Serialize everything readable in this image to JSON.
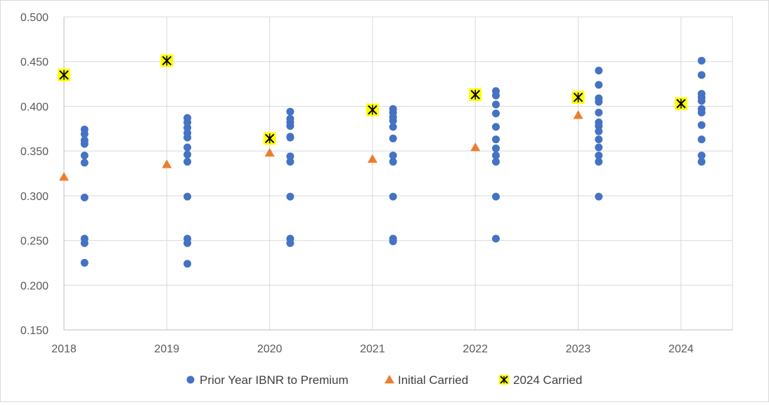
{
  "chart_data": {
    "type": "scatter",
    "title": "",
    "xlabel": "",
    "ylabel": "",
    "xlim": [
      2018,
      2024.5
    ],
    "ylim": [
      0.15,
      0.5
    ],
    "x_ticks": [
      "2018",
      "2019",
      "2020",
      "2021",
      "2022",
      "2023",
      "2024"
    ],
    "y_ticks": [
      "0.500",
      "0.450",
      "0.400",
      "0.350",
      "0.300",
      "0.250",
      "0.200",
      "0.150"
    ],
    "grid": true,
    "legend_position": "bottom",
    "series": [
      {
        "name": "Prior Year IBNR to Premium",
        "marker": "circle",
        "color": "#4472C4",
        "points": [
          [
            2018.2,
            0.374
          ],
          [
            2018.2,
            0.369
          ],
          [
            2018.2,
            0.362
          ],
          [
            2018.2,
            0.358
          ],
          [
            2018.2,
            0.345
          ],
          [
            2018.2,
            0.337
          ],
          [
            2018.2,
            0.298
          ],
          [
            2018.2,
            0.252
          ],
          [
            2018.2,
            0.247
          ],
          [
            2018.2,
            0.225
          ],
          [
            2019.2,
            0.387
          ],
          [
            2019.2,
            0.382
          ],
          [
            2019.2,
            0.376
          ],
          [
            2019.2,
            0.37
          ],
          [
            2019.2,
            0.365
          ],
          [
            2019.2,
            0.354
          ],
          [
            2019.2,
            0.346
          ],
          [
            2019.2,
            0.338
          ],
          [
            2019.2,
            0.299
          ],
          [
            2019.2,
            0.252
          ],
          [
            2019.2,
            0.247
          ],
          [
            2019.2,
            0.224
          ],
          [
            2020.2,
            0.394
          ],
          [
            2020.2,
            0.386
          ],
          [
            2020.2,
            0.382
          ],
          [
            2020.2,
            0.378
          ],
          [
            2020.2,
            0.366
          ],
          [
            2020.2,
            0.365
          ],
          [
            2020.2,
            0.344
          ],
          [
            2020.2,
            0.338
          ],
          [
            2020.2,
            0.299
          ],
          [
            2020.2,
            0.252
          ],
          [
            2020.2,
            0.247
          ],
          [
            2021.2,
            0.397
          ],
          [
            2021.2,
            0.393
          ],
          [
            2021.2,
            0.388
          ],
          [
            2021.2,
            0.384
          ],
          [
            2021.2,
            0.377
          ],
          [
            2021.2,
            0.364
          ],
          [
            2021.2,
            0.345
          ],
          [
            2021.2,
            0.338
          ],
          [
            2021.2,
            0.299
          ],
          [
            2021.2,
            0.252
          ],
          [
            2021.2,
            0.249
          ],
          [
            2022.2,
            0.417
          ],
          [
            2022.2,
            0.412
          ],
          [
            2022.2,
            0.402
          ],
          [
            2022.2,
            0.392
          ],
          [
            2022.2,
            0.377
          ],
          [
            2022.2,
            0.363
          ],
          [
            2022.2,
            0.353
          ],
          [
            2022.2,
            0.345
          ],
          [
            2022.2,
            0.338
          ],
          [
            2022.2,
            0.299
          ],
          [
            2022.2,
            0.252
          ],
          [
            2023.2,
            0.44
          ],
          [
            2023.2,
            0.424
          ],
          [
            2023.2,
            0.409
          ],
          [
            2023.2,
            0.405
          ],
          [
            2023.2,
            0.393
          ],
          [
            2023.2,
            0.382
          ],
          [
            2023.2,
            0.378
          ],
          [
            2023.2,
            0.372
          ],
          [
            2023.2,
            0.363
          ],
          [
            2023.2,
            0.354
          ],
          [
            2023.2,
            0.345
          ],
          [
            2023.2,
            0.338
          ],
          [
            2023.2,
            0.299
          ],
          [
            2024.2,
            0.451
          ],
          [
            2024.2,
            0.435
          ],
          [
            2024.2,
            0.414
          ],
          [
            2024.2,
            0.41
          ],
          [
            2024.2,
            0.406
          ],
          [
            2024.2,
            0.397
          ],
          [
            2024.2,
            0.393
          ],
          [
            2024.2,
            0.379
          ],
          [
            2024.2,
            0.363
          ],
          [
            2024.2,
            0.345
          ],
          [
            2024.2,
            0.338
          ]
        ]
      },
      {
        "name": "Initial Carried",
        "marker": "triangle",
        "color": "#ED7D31",
        "points": [
          [
            2018,
            0.321
          ],
          [
            2019,
            0.335
          ],
          [
            2020,
            0.348
          ],
          [
            2021,
            0.341
          ],
          [
            2022,
            0.354
          ],
          [
            2023,
            0.39
          ]
        ]
      },
      {
        "name": "2024 Carried",
        "marker": "x-square",
        "color": "#FFFF00",
        "points": [
          [
            2018,
            0.435
          ],
          [
            2019,
            0.451
          ],
          [
            2020,
            0.364
          ],
          [
            2021,
            0.396
          ],
          [
            2022,
            0.413
          ],
          [
            2023,
            0.41
          ],
          [
            2024,
            0.403
          ]
        ]
      }
    ]
  }
}
